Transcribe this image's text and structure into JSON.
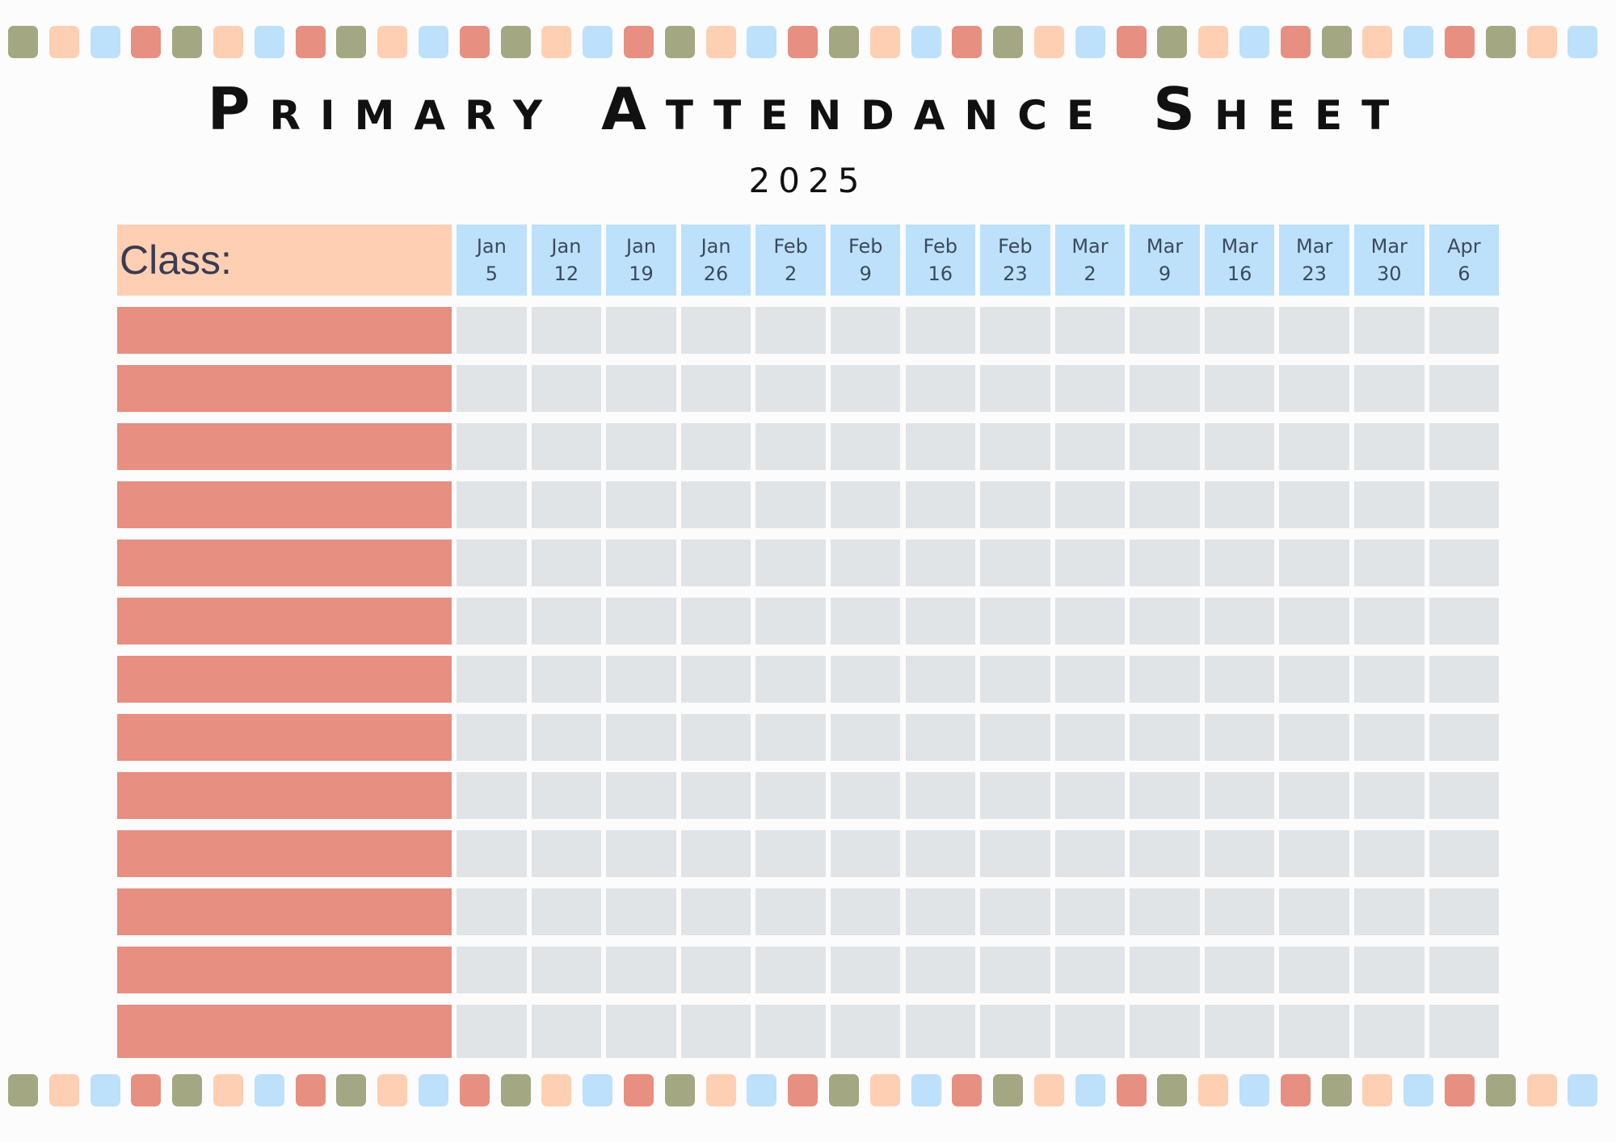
{
  "title": "Primary Attendance Sheet",
  "year": "2025",
  "class_label": "Class:",
  "dates": [
    {
      "month": "Jan",
      "day": "5"
    },
    {
      "month": "Jan",
      "day": "12"
    },
    {
      "month": "Jan",
      "day": "19"
    },
    {
      "month": "Jan",
      "day": "26"
    },
    {
      "month": "Feb",
      "day": "2"
    },
    {
      "month": "Feb",
      "day": "9"
    },
    {
      "month": "Feb",
      "day": "16"
    },
    {
      "month": "Feb",
      "day": "23"
    },
    {
      "month": "Mar",
      "day": "2"
    },
    {
      "month": "Mar",
      "day": "9"
    },
    {
      "month": "Mar",
      "day": "16"
    },
    {
      "month": "Mar",
      "day": "23"
    },
    {
      "month": "Mar",
      "day": "30"
    },
    {
      "month": "Apr",
      "day": "6"
    }
  ],
  "student_rows": 13,
  "colors": {
    "olive": "#a3a882",
    "peach": "#fecfb2",
    "sky": "#bde1fb",
    "coral": "#e78f81",
    "cell_gray": "#e1e4e7"
  },
  "decoration_pattern": [
    "olive",
    "peach",
    "sky",
    "coral"
  ]
}
